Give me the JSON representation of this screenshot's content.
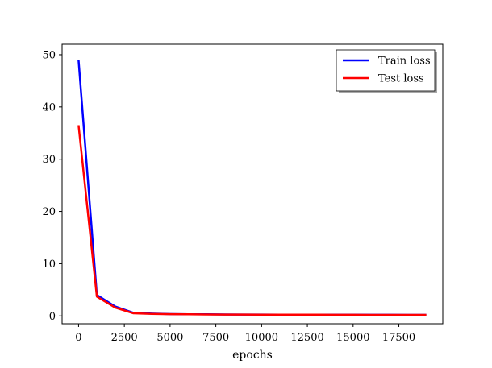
{
  "chart_data": {
    "type": "line",
    "title": "",
    "xlabel": "epochs",
    "ylabel": "",
    "xlim": [
      -900,
      19900
    ],
    "ylim": [
      -1.5,
      52
    ],
    "xticks": [
      0,
      2500,
      5000,
      7500,
      10000,
      12500,
      15000,
      17500
    ],
    "yticks": [
      0,
      10,
      20,
      30,
      40,
      50
    ],
    "x": [
      0,
      1000,
      2000,
      3000,
      4000,
      5000,
      6000,
      7000,
      8000,
      9000,
      10000,
      11000,
      12000,
      13000,
      14000,
      15000,
      16000,
      17000,
      18000,
      19000
    ],
    "series": [
      {
        "name": "Train loss",
        "color": "#0000ff",
        "values": [
          49.0,
          4.0,
          1.8,
          0.6,
          0.45,
          0.35,
          0.32,
          0.3,
          0.28,
          0.26,
          0.25,
          0.24,
          0.23,
          0.23,
          0.22,
          0.22,
          0.21,
          0.21,
          0.2,
          0.2
        ]
      },
      {
        "name": "Test loss",
        "color": "#ff0000",
        "values": [
          36.5,
          3.7,
          1.6,
          0.5,
          0.4,
          0.33,
          0.3,
          0.28,
          0.26,
          0.25,
          0.24,
          0.23,
          0.22,
          0.22,
          0.21,
          0.21,
          0.2,
          0.2,
          0.2,
          0.2
        ]
      }
    ],
    "legend": "top-right",
    "grid": false
  }
}
